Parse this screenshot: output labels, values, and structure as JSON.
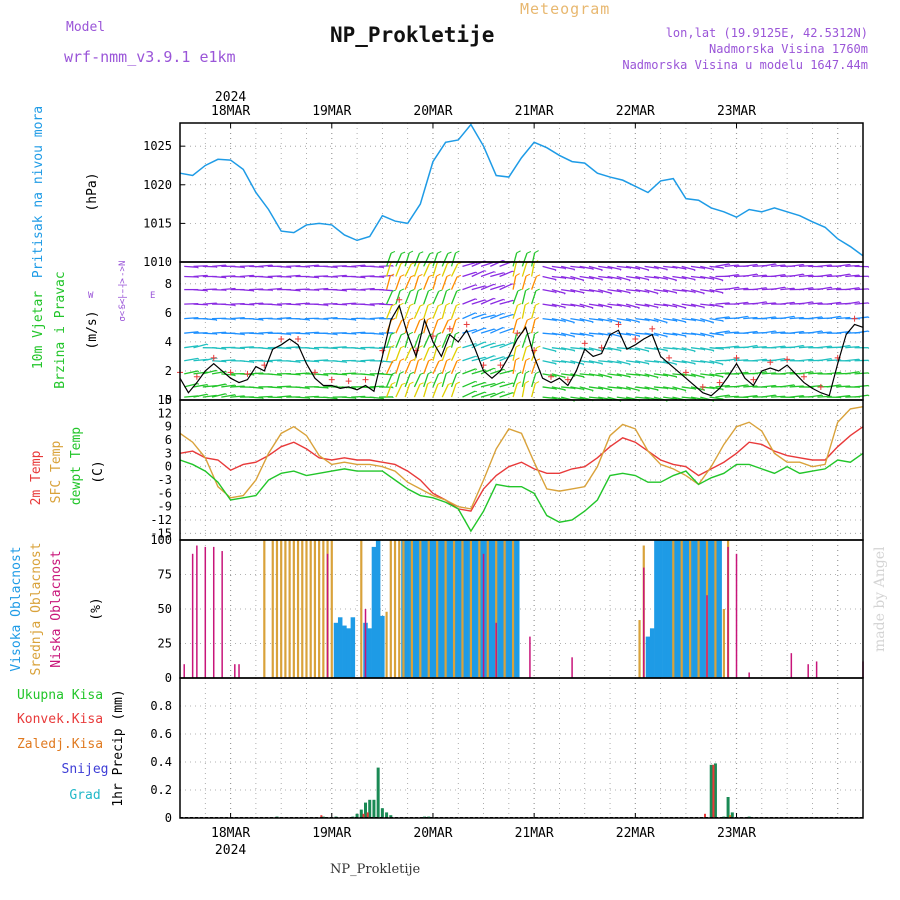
{
  "header": {
    "model_label": "Model",
    "model_name": "wrf-nmm_v3.9.1  e1km",
    "title": "NP_Prokletije",
    "meteogram": "Meteogram",
    "lonlat": "lon,lat (19.9125E, 42.5312N)",
    "elevation": "Nadmorska Visina 1760m",
    "model_elevation": "Nadmorska Visina u modelu 1647.44m",
    "watermark": "made by Angel",
    "footer_station": "NP_Prokletije"
  },
  "colors": {
    "pressure": "#1e9be6",
    "temp2m": "#e83a3a",
    "sfc": "#d9a23a",
    "dewpt": "#22c52a",
    "cloud_high": "#1e9be6",
    "cloud_mid": "#d9a23a",
    "cloud_low": "#c8157a",
    "wind_purple": "#8a2be2",
    "wind_blue": "#1e90ff",
    "wind_teal": "#20c0c0",
    "wind_green": "#22c52a",
    "wind_yellow": "#e0d000",
    "precip_total": "#1a8a55",
    "precip_conv": "#e83a3a",
    "precip_frz": "#e07a20",
    "precip_snow": "#3d3dd6",
    "precip_graupel": "#22b8c8"
  },
  "chart_data": [
    {
      "type": "line",
      "panel": "pressure",
      "ylabel_title": "Pritisak na nivou mora",
      "ylabel_unit": "(hPa)",
      "ylim": [
        1010,
        1028
      ],
      "yticks": [
        1010,
        1015,
        1020,
        1025
      ],
      "x_dates": [
        "18MAR",
        "19MAR",
        "20MAR",
        "21MAR",
        "22MAR",
        "23MAR"
      ],
      "x_year": "2024",
      "x_start_hour": -12,
      "grid": true,
      "series": [
        {
          "x": [
            -12,
            -9,
            -6,
            -3,
            0,
            3,
            6,
            9,
            12,
            15,
            18,
            21,
            24,
            27,
            30,
            33,
            36,
            39,
            42,
            45,
            48,
            51,
            54,
            57,
            60,
            63,
            66,
            69,
            72,
            75,
            78,
            81,
            84,
            87,
            90,
            93,
            96,
            99,
            102,
            105,
            108,
            111,
            114,
            117,
            120,
            123,
            126,
            129,
            132,
            135,
            138,
            141,
            144,
            147,
            150
          ],
          "y": [
            1021.5,
            1021.2,
            1022.5,
            1023.3,
            1023.2,
            1022.0,
            1019.0,
            1016.8,
            1014.0,
            1013.8,
            1014.8,
            1015.0,
            1014.8,
            1013.5,
            1012.8,
            1013.3,
            1016.0,
            1015.3,
            1015.0,
            1017.5,
            1023.0,
            1025.5,
            1025.8,
            1027.8,
            1025.0,
            1021.2,
            1021.0,
            1023.5,
            1025.5,
            1024.8,
            1023.8,
            1023.0,
            1022.8,
            1021.5,
            1021.0,
            1020.6,
            1019.8,
            1019.0,
            1020.5,
            1020.8,
            1018.2,
            1018.0,
            1017.0,
            1016.5,
            1015.8,
            1016.8,
            1016.5,
            1017.0,
            1016.5,
            1016.0,
            1015.2,
            1014.5,
            1013.0,
            1012.0,
            1010.8
          ]
        }
      ]
    },
    {
      "type": "line",
      "panel": "wind",
      "ylabel_title": "10m Vjetar",
      "ylabel_title2": "Brzina i Pravac",
      "ylabel_unit": "(m/s)",
      "compass_w": "W",
      "compass_e": "E",
      "compass_ns": "S<--|-->N",
      "compass_dir": "σ<--|-->",
      "ylim": [
        0,
        9.5
      ],
      "yticks": [
        0,
        2,
        4,
        6,
        8
      ],
      "grid": true,
      "series": [
        {
          "name": "speed",
          "x": [
            -12,
            -10,
            -8,
            -6,
            -4,
            -2,
            0,
            2,
            4,
            6,
            8,
            10,
            12,
            14,
            16,
            18,
            20,
            22,
            24,
            26,
            28,
            30,
            32,
            34,
            36,
            38,
            40,
            42,
            44,
            46,
            48,
            50,
            52,
            54,
            56,
            58,
            60,
            62,
            64,
            66,
            68,
            70,
            72,
            74,
            76,
            78,
            80,
            82,
            84,
            86,
            88,
            90,
            92,
            94,
            96,
            98,
            100,
            102,
            104,
            106,
            108,
            110,
            112,
            114,
            116,
            118,
            120,
            122,
            124,
            126,
            128,
            130,
            132,
            134,
            136,
            138,
            140,
            142,
            144,
            146,
            148,
            150
          ],
          "y": [
            1.5,
            0.5,
            1.2,
            2.0,
            2.5,
            2.0,
            1.5,
            1.2,
            1.4,
            2.3,
            2.0,
            3.5,
            3.8,
            4.2,
            3.8,
            2.5,
            1.5,
            1.0,
            1.0,
            0.8,
            0.9,
            0.7,
            1.0,
            0.6,
            3.0,
            5.5,
            6.5,
            4.5,
            3.0,
            5.5,
            4.0,
            3.0,
            4.5,
            4.0,
            4.8,
            3.5,
            2.0,
            1.5,
            2.0,
            3.0,
            4.2,
            5.0,
            3.0,
            1.5,
            1.2,
            1.5,
            1.0,
            2.0,
            3.5,
            3.0,
            3.2,
            4.5,
            4.8,
            3.5,
            3.8,
            4.2,
            4.5,
            3.0,
            2.5,
            2.0,
            1.5,
            1.0,
            0.5,
            0.3,
            0.8,
            1.6,
            2.5,
            1.5,
            1.0,
            2.0,
            2.2,
            2.0,
            2.4,
            1.8,
            1.2,
            0.8,
            0.5,
            0.3,
            2.5,
            4.5,
            5.2,
            5.0
          ]
        }
      ]
    },
    {
      "type": "line",
      "panel": "temperature",
      "ylabel_labels": [
        "2m Temp",
        "SFC Temp",
        "dewpt Temp"
      ],
      "ylabel_unit": "(C)",
      "ylim": [
        -16.5,
        15
      ],
      "yticks": [
        -15,
        -12,
        -9,
        -6,
        -3,
        0,
        3,
        6,
        9,
        12,
        15
      ],
      "grid": true,
      "x": [
        -12,
        -9,
        -6,
        -3,
        0,
        3,
        6,
        9,
        12,
        15,
        18,
        21,
        24,
        27,
        30,
        33,
        36,
        39,
        42,
        45,
        48,
        51,
        54,
        57,
        60,
        63,
        66,
        69,
        72,
        75,
        78,
        81,
        84,
        87,
        90,
        93,
        96,
        99,
        102,
        105,
        108,
        111,
        114,
        117,
        120,
        123,
        126,
        129,
        132,
        135,
        138,
        141,
        144,
        147,
        150
      ],
      "series": [
        {
          "name": "2m Temp",
          "y": [
            3.0,
            3.5,
            2.0,
            1.5,
            -0.8,
            0.5,
            1.0,
            2.5,
            4.5,
            5.5,
            4.0,
            2.0,
            1.5,
            2.0,
            1.5,
            1.5,
            1.0,
            0.5,
            -1.0,
            -3.0,
            -6.0,
            -7.5,
            -9.5,
            -10.0,
            -5.0,
            -2.0,
            0.0,
            1.0,
            -0.5,
            -1.5,
            -1.5,
            -0.5,
            0.0,
            2.0,
            4.5,
            6.5,
            5.5,
            3.5,
            1.5,
            0.5,
            0.0,
            -2.0,
            -0.5,
            1.0,
            3.0,
            5.5,
            5.0,
            3.5,
            2.5,
            2.0,
            1.5,
            1.5,
            4.5,
            7.0,
            9.0
          ]
        },
        {
          "name": "SFC Temp",
          "y": [
            7.5,
            5.5,
            2.0,
            -4.5,
            -7.0,
            -6.5,
            -3.0,
            3.0,
            7.5,
            9.0,
            7.0,
            2.5,
            0.5,
            1.0,
            0.5,
            0.5,
            0.0,
            -1.0,
            -3.5,
            -5.0,
            -6.5,
            -7.5,
            -9.0,
            -9.5,
            -3.0,
            4.0,
            8.5,
            7.5,
            1.0,
            -5.0,
            -5.5,
            -5.0,
            -4.5,
            0.0,
            7.0,
            9.5,
            8.5,
            3.5,
            0.5,
            -0.5,
            -2.0,
            -4.0,
            0.0,
            5.0,
            9.0,
            10.0,
            8.0,
            3.0,
            1.0,
            1.0,
            0.0,
            0.5,
            10.0,
            13.0,
            13.5
          ]
        },
        {
          "name": "dewpt Temp",
          "y": [
            1.5,
            0.5,
            -1.0,
            -3.5,
            -7.5,
            -7.0,
            -6.5,
            -3.0,
            -1.5,
            -1.0,
            -2.0,
            -1.5,
            -1.0,
            -0.5,
            -1.0,
            -1.0,
            -1.0,
            -3.0,
            -5.0,
            -6.5,
            -7.0,
            -8.0,
            -9.5,
            -14.5,
            -10.0,
            -4.0,
            -4.5,
            -4.5,
            -6.0,
            -11.0,
            -12.5,
            -12.0,
            -10.0,
            -7.5,
            -2.0,
            -1.5,
            -2.0,
            -3.5,
            -3.5,
            -2.0,
            -1.0,
            -4.0,
            -2.5,
            -1.5,
            0.5,
            0.5,
            -0.5,
            -1.5,
            0.0,
            -1.5,
            -1.0,
            -0.5,
            1.5,
            1.0,
            3.0
          ]
        }
      ]
    },
    {
      "type": "bar",
      "panel": "clouds",
      "ylabel_labels": [
        "Visoka Oblacnost",
        "Srednja Oblacnost",
        "Niska Oblacnost"
      ],
      "ylabel_unit": "(%)",
      "ylim": [
        0,
        100
      ],
      "yticks": [
        0,
        25,
        50,
        75,
        100
      ],
      "grid": true,
      "series": [
        {
          "name": "Visoka Oblacnost",
          "x": [
            25,
            26,
            27,
            28,
            29,
            32,
            33,
            34,
            35,
            36,
            41,
            42,
            43,
            44,
            45,
            46,
            47,
            48,
            49,
            50,
            51,
            52,
            53,
            54,
            55,
            56,
            57,
            58,
            59,
            60,
            61,
            62,
            63,
            64,
            65,
            66,
            67,
            68,
            99,
            100,
            101,
            102,
            103,
            104,
            105,
            106,
            107,
            108,
            109,
            110,
            111,
            112,
            113,
            114,
            115,
            116
          ],
          "y": [
            40,
            44,
            38,
            36,
            44,
            40,
            36,
            95,
            100,
            45,
            100,
            100,
            100,
            100,
            100,
            100,
            100,
            100,
            100,
            100,
            100,
            100,
            100,
            100,
            100,
            100,
            100,
            100,
            100,
            100,
            100,
            100,
            100,
            100,
            100,
            100,
            100,
            100,
            30,
            36,
            100,
            100,
            100,
            100,
            100,
            100,
            100,
            100,
            100,
            100,
            100,
            100,
            100,
            100,
            100,
            100
          ]
        },
        {
          "name": "Srednja Oblacnost",
          "x": [
            8,
            10,
            11,
            12,
            13,
            14,
            15,
            16,
            17,
            18,
            19,
            20,
            21,
            22,
            23,
            24,
            31,
            37,
            38,
            39,
            40,
            41,
            43,
            45,
            47,
            49,
            51,
            53,
            55,
            57,
            59,
            61,
            63,
            65,
            67,
            97,
            98,
            105,
            107,
            109,
            111,
            113,
            115,
            117,
            118
          ],
          "y": [
            100,
            100,
            100,
            100,
            100,
            100,
            100,
            100,
            100,
            100,
            100,
            100,
            100,
            100,
            100,
            100,
            100,
            48,
            100,
            100,
            100,
            100,
            100,
            100,
            100,
            100,
            100,
            100,
            100,
            100,
            100,
            100,
            100,
            100,
            100,
            42,
            96,
            100,
            100,
            100,
            100,
            100,
            100,
            50,
            100
          ]
        },
        {
          "name": "Niska Oblacnost",
          "x": [
            -11,
            -9,
            -8,
            -6,
            -4,
            -2,
            1,
            2,
            23,
            32,
            60,
            63,
            71,
            81,
            98,
            113,
            118,
            120,
            123,
            133,
            137,
            139,
            150
          ],
          "y": [
            10,
            90,
            96,
            95,
            95,
            92,
            10,
            10,
            90,
            50,
            90,
            40,
            30,
            15,
            80,
            60,
            95,
            90,
            4,
            18,
            10,
            12,
            12
          ]
        }
      ]
    },
    {
      "type": "bar",
      "panel": "precip",
      "ylabel_labels": [
        "Ukupna Kisa",
        "Konvek.Kisa",
        "Zaledj.Kisa",
        "Snijeg",
        "Grad"
      ],
      "ylabel_unit": "1hr Precip (mm)",
      "ylim": [
        0,
        1.0
      ],
      "yticks": [
        0,
        0.2,
        0.4,
        0.6,
        0.8
      ],
      "grid": true,
      "series": [
        {
          "name": "Ukupna Kisa",
          "x": [
            11,
            22,
            25,
            29,
            30,
            31,
            32,
            33,
            34,
            35,
            36,
            37,
            38,
            46,
            47,
            114,
            115,
            117,
            118,
            119,
            123
          ],
          "y": [
            0.01,
            0.01,
            0.01,
            0.01,
            0.03,
            0.06,
            0.11,
            0.13,
            0.13,
            0.36,
            0.07,
            0.04,
            0.02,
            0.01,
            0.01,
            0.38,
            0.39,
            0.01,
            0.15,
            0.04,
            0.01
          ]
        },
        {
          "name": "Konvek.Kisa",
          "x": [
            22,
            32,
            33,
            113,
            115
          ],
          "y": [
            0.02,
            0.03,
            0.04,
            0.03,
            0.38
          ]
        },
        {
          "name": "Zaledj.Kisa",
          "x": [
            118
          ],
          "y": [
            0.02
          ]
        }
      ]
    }
  ]
}
